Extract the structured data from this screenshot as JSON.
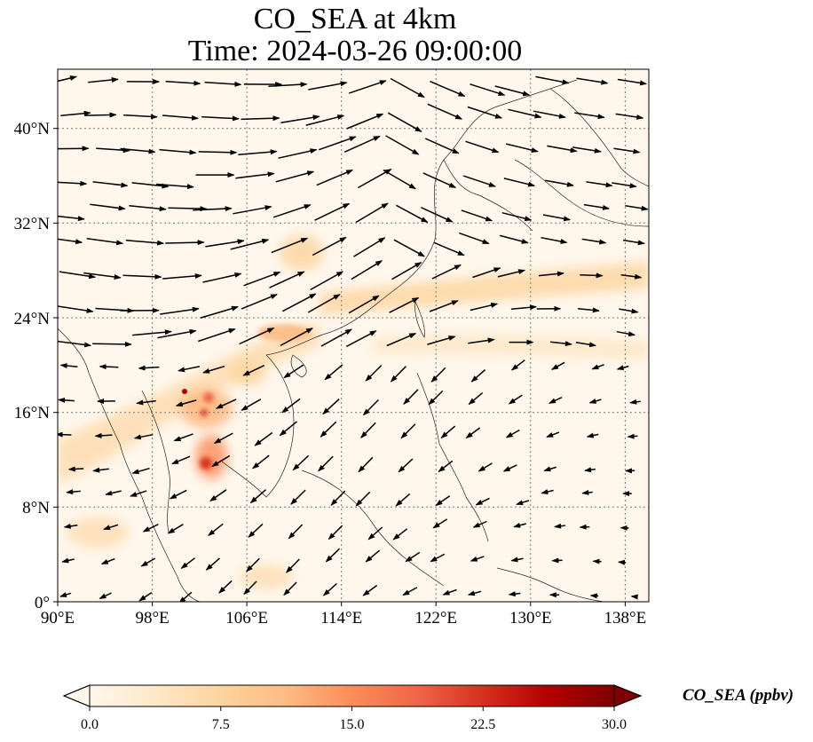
{
  "title": {
    "line1": "CO_SEA at 4km",
    "line2": "Time: 2024-03-26 09:00:00"
  },
  "map": {
    "lon_range": [
      90,
      140
    ],
    "lat_range": [
      0,
      45
    ],
    "lat_ticks": [
      "0°",
      "8°N",
      "16°N",
      "24°N",
      "32°N",
      "40°N"
    ],
    "lon_ticks": [
      "90°E",
      "98°E",
      "106°E",
      "114°E",
      "122°E",
      "130°E",
      "138°E"
    ],
    "gridlines": "dotted",
    "vectors": "wind"
  },
  "colorbar": {
    "label": "CO_SEA (ppbv)",
    "ticks": [
      "0.0",
      "7.5",
      "15.0",
      "22.5",
      "30.0"
    ],
    "range": [
      0,
      30
    ],
    "extend": "both",
    "colormap": "OrRd",
    "colors": [
      "#fff7ec",
      "#fee8c8",
      "#fdd49e",
      "#fdbb84",
      "#fc8d59",
      "#ef6548",
      "#d7301f",
      "#b30000",
      "#7f0000"
    ]
  }
}
